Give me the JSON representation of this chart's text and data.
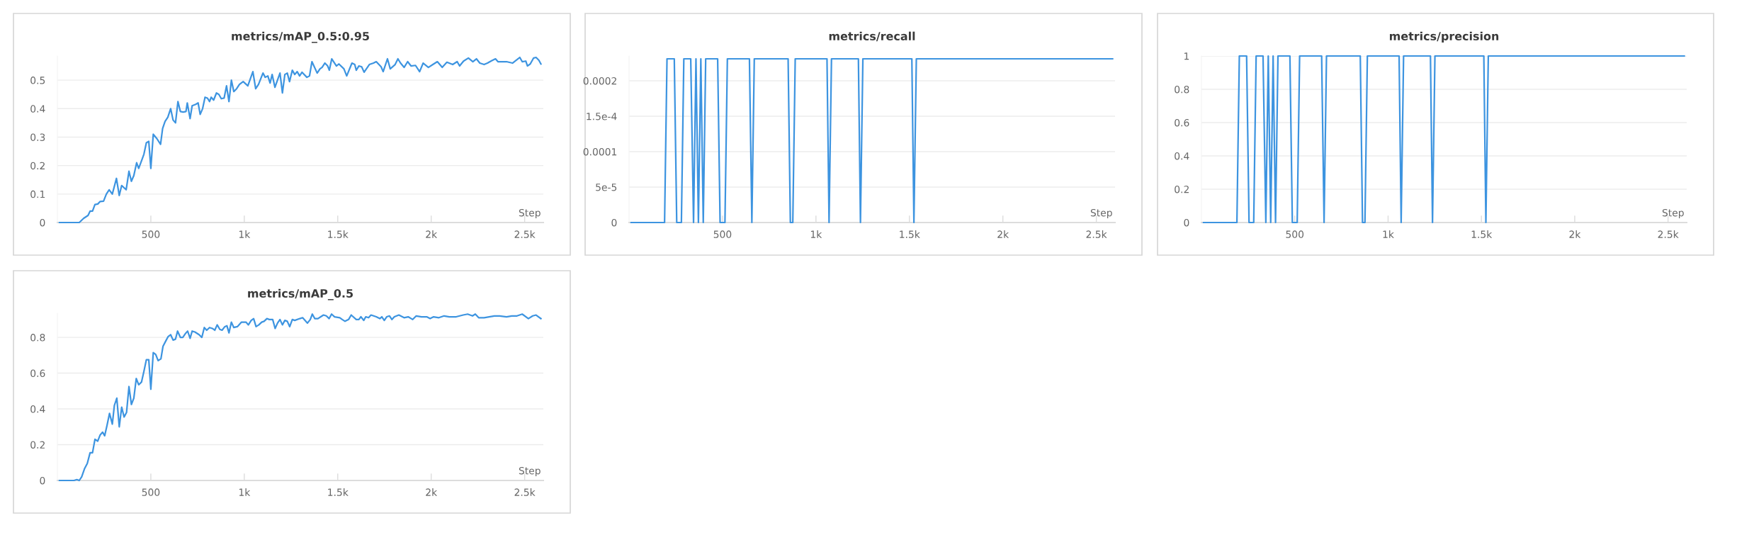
{
  "chart_data": [
    {
      "type": "line",
      "title": "metrics/mAP_0.5:0.95",
      "xlabel": "Step",
      "grid": "y",
      "xlim": [
        0,
        2600
      ],
      "ylim": [
        0,
        0.585
      ],
      "xticks": [
        500,
        {
          "value": 1000,
          "label": "1k"
        },
        {
          "value": 1500,
          "label": "1.5k"
        },
        {
          "value": 2000,
          "label": "2k"
        },
        {
          "value": 2500,
          "label": "2.5k"
        }
      ],
      "yticks": [
        0,
        0.1,
        0.2,
        0.3,
        0.4,
        0.5
      ],
      "series": [
        {
          "color": "#3d94e0",
          "x": [
            11,
            117,
            141,
            164,
            175,
            188,
            201,
            216,
            229,
            247,
            262,
            277,
            294,
            316,
            331,
            344,
            368,
            383,
            396,
            409,
            424,
            435,
            452,
            463,
            476,
            489,
            500,
            513,
            532,
            552,
            563,
            576,
            591,
            606,
            619,
            632,
            645,
            658,
            673,
            688,
            695,
            710,
            721,
            740,
            753,
            764,
            777,
            790,
            803,
            814,
            823,
            836,
            851,
            864,
            877,
            892,
            905,
            918,
            931,
            944,
            959,
            974,
            994,
            1019,
            1046,
            1061,
            1076,
            1100,
            1112,
            1126,
            1138,
            1149,
            1164,
            1191,
            1204,
            1217,
            1230,
            1242,
            1257,
            1270,
            1283,
            1296,
            1309,
            1335,
            1349,
            1362,
            1390,
            1405,
            1416,
            1431,
            1446,
            1455,
            1468,
            1493,
            1506,
            1533,
            1548,
            1576,
            1591,
            1599,
            1613,
            1628,
            1641,
            1669,
            1691,
            1706,
            1732,
            1743,
            1766,
            1781,
            1807,
            1822,
            1836,
            1855,
            1874,
            1892,
            1916,
            1938,
            1957,
            1985,
            2009,
            2033,
            2059,
            2084,
            2115,
            2139,
            2152,
            2173,
            2199,
            2223,
            2242,
            2260,
            2283,
            2301,
            2323,
            2344,
            2357,
            2403,
            2435,
            2459,
            2474,
            2487,
            2506,
            2515,
            2530,
            2548,
            2561,
            2576,
            2587
          ],
          "values": [
            0,
            0,
            0.015,
            0.025,
            0.04,
            0.04,
            0.063,
            0.065,
            0.074,
            0.075,
            0.1,
            0.115,
            0.1,
            0.155,
            0.095,
            0.13,
            0.115,
            0.18,
            0.145,
            0.165,
            0.21,
            0.19,
            0.22,
            0.24,
            0.28,
            0.285,
            0.19,
            0.31,
            0.295,
            0.275,
            0.33,
            0.355,
            0.37,
            0.4,
            0.36,
            0.35,
            0.425,
            0.39,
            0.388,
            0.39,
            0.42,
            0.365,
            0.41,
            0.415,
            0.42,
            0.38,
            0.4,
            0.44,
            0.437,
            0.425,
            0.44,
            0.43,
            0.455,
            0.45,
            0.435,
            0.437,
            0.48,
            0.425,
            0.5,
            0.46,
            0.47,
            0.485,
            0.495,
            0.48,
            0.53,
            0.47,
            0.485,
            0.525,
            0.51,
            0.515,
            0.49,
            0.52,
            0.475,
            0.525,
            0.455,
            0.52,
            0.525,
            0.495,
            0.535,
            0.52,
            0.53,
            0.515,
            0.528,
            0.51,
            0.515,
            0.565,
            0.525,
            0.54,
            0.545,
            0.56,
            0.55,
            0.535,
            0.575,
            0.55,
            0.557,
            0.54,
            0.515,
            0.56,
            0.555,
            0.535,
            0.55,
            0.547,
            0.528,
            0.555,
            0.56,
            0.565,
            0.547,
            0.53,
            0.575,
            0.54,
            0.555,
            0.575,
            0.56,
            0.545,
            0.565,
            0.55,
            0.552,
            0.53,
            0.56,
            0.545,
            0.555,
            0.565,
            0.545,
            0.563,
            0.555,
            0.565,
            0.55,
            0.567,
            0.578,
            0.565,
            0.575,
            0.56,
            0.555,
            0.56,
            0.568,
            0.575,
            0.565,
            0.565,
            0.56,
            0.572,
            0.58,
            0.565,
            0.567,
            0.55,
            0.557,
            0.578,
            0.58,
            0.57,
            0.557
          ]
        }
      ]
    },
    {
      "type": "line",
      "title": "metrics/recall",
      "xlabel": "Step",
      "grid": "y",
      "xlim": [
        0,
        2600
      ],
      "ylim": [
        0,
        0.000235
      ],
      "xticks": [
        500,
        {
          "value": 1000,
          "label": "1k"
        },
        {
          "value": 1500,
          "label": "1.5k"
        },
        {
          "value": 2000,
          "label": "2k"
        },
        {
          "value": 2500,
          "label": "2.5k"
        }
      ],
      "yticks": [
        0,
        {
          "value": 5e-05,
          "label": "5e-5"
        },
        {
          "value": 0.0001,
          "label": "0.0001"
        },
        {
          "value": 0.00015,
          "label": "1.5e-4"
        },
        {
          "value": 0.0002,
          "label": "0.0002"
        }
      ],
      "series": [
        {
          "color": "#3d94e0",
          "x": [
            11,
            190,
            203,
            242,
            255,
            280,
            293,
            330,
            345,
            358,
            371,
            384,
            397,
            410,
            474,
            487,
            513,
            526,
            644,
            657,
            670,
            851,
            863,
            876,
            889,
            1059,
            1070,
            1083,
            1227,
            1238,
            1251,
            1513,
            1524,
            1537,
            2587
          ],
          "values": [
            0,
            0,
            0.000231,
            0.000231,
            0,
            0,
            0.000231,
            0.000231,
            0,
            0.000231,
            0,
            0.000231,
            0,
            0.000231,
            0.000231,
            0,
            0,
            0.000231,
            0.000231,
            0,
            0.000231,
            0.000231,
            0,
            0,
            0.000231,
            0.000231,
            0,
            0.000231,
            0.000231,
            0,
            0.000231,
            0.000231,
            0,
            0.000231,
            0.000231
          ]
        }
      ]
    },
    {
      "type": "line",
      "title": "metrics/precision",
      "xlabel": "Step",
      "grid": "y",
      "xlim": [
        0,
        2600
      ],
      "ylim": [
        0,
        1
      ],
      "xticks": [
        500,
        {
          "value": 1000,
          "label": "1k"
        },
        {
          "value": 1500,
          "label": "1.5k"
        },
        {
          "value": 2000,
          "label": "2k"
        },
        {
          "value": 2500,
          "label": "2.5k"
        }
      ],
      "yticks": [
        0,
        0.2,
        0.4,
        0.6,
        0.8,
        1
      ],
      "series": [
        {
          "color": "#3d94e0",
          "x": [
            11,
            190,
            203,
            242,
            255,
            280,
            293,
            330,
            345,
            358,
            371,
            384,
            397,
            410,
            474,
            487,
            513,
            526,
            644,
            657,
            670,
            851,
            863,
            876,
            889,
            1059,
            1070,
            1083,
            1227,
            1238,
            1251,
            1513,
            1524,
            1537,
            2587
          ],
          "values": [
            0,
            0,
            1,
            1,
            0,
            0,
            1,
            1,
            0,
            1,
            0,
            1,
            0,
            1,
            1,
            0,
            0,
            1,
            1,
            0,
            1,
            1,
            0,
            0,
            1,
            1,
            0,
            1,
            1,
            0,
            1,
            1,
            0,
            1,
            1
          ]
        }
      ]
    },
    {
      "type": "line",
      "title": "metrics/mAP_0.5",
      "xlabel": "Step",
      "grid": "y",
      "xlim": [
        0,
        2600
      ],
      "ylim": [
        0,
        0.935
      ],
      "xticks": [
        500,
        {
          "value": 1000,
          "label": "1k"
        },
        {
          "value": 1500,
          "label": "1.5k"
        },
        {
          "value": 2000,
          "label": "2k"
        },
        {
          "value": 2500,
          "label": "2.5k"
        }
      ],
      "yticks": [
        0,
        0.2,
        0.4,
        0.6,
        0.8
      ],
      "series": [
        {
          "color": "#3d94e0",
          "x": [
            11,
            89,
            104,
            117,
            130,
            145,
            160,
            175,
            188,
            201,
            216,
            229,
            242,
            253,
            266,
            279,
            294,
            305,
            318,
            331,
            344,
            357,
            370,
            383,
            396,
            409,
            422,
            435,
            450,
            463,
            476,
            489,
            500,
            513,
            526,
            539,
            554,
            565,
            580,
            593,
            606,
            619,
            632,
            643,
            658,
            671,
            684,
            697,
            710,
            721,
            736,
            758,
            773,
            786,
            799,
            814,
            829,
            842,
            855,
            869,
            881,
            896,
            907,
            918,
            931,
            944,
            963,
            985,
            1009,
            1022,
            1037,
            1050,
            1063,
            1078,
            1093,
            1106,
            1121,
            1134,
            1152,
            1165,
            1178,
            1191,
            1204,
            1217,
            1230,
            1243,
            1257,
            1270,
            1297,
            1312,
            1338,
            1353,
            1364,
            1377,
            1394,
            1409,
            1424,
            1439,
            1454,
            1467,
            1483,
            1511,
            1524,
            1539,
            1558,
            1572,
            1599,
            1613,
            1624,
            1639,
            1650,
            1665,
            1678,
            1706,
            1725,
            1736,
            1749,
            1762,
            1777,
            1790,
            1803,
            1827,
            1855,
            1877,
            1901,
            1920,
            1948,
            1976,
            1994,
            2013,
            2041,
            2069,
            2097,
            2134,
            2171,
            2195,
            2221,
            2236,
            2254,
            2283,
            2310,
            2338,
            2366,
            2403,
            2431,
            2459,
            2487,
            2520,
            2543,
            2561,
            2587
          ],
          "values": [
            0,
            0,
            0.005,
            0,
            0.02,
            0.065,
            0.095,
            0.155,
            0.155,
            0.23,
            0.22,
            0.255,
            0.27,
            0.25,
            0.31,
            0.375,
            0.315,
            0.42,
            0.46,
            0.3,
            0.41,
            0.355,
            0.38,
            0.525,
            0.425,
            0.46,
            0.57,
            0.535,
            0.55,
            0.61,
            0.675,
            0.675,
            0.51,
            0.715,
            0.705,
            0.67,
            0.68,
            0.75,
            0.78,
            0.805,
            0.815,
            0.785,
            0.79,
            0.835,
            0.8,
            0.8,
            0.82,
            0.835,
            0.795,
            0.835,
            0.83,
            0.815,
            0.8,
            0.855,
            0.84,
            0.855,
            0.85,
            0.84,
            0.87,
            0.845,
            0.84,
            0.86,
            0.865,
            0.825,
            0.885,
            0.855,
            0.86,
            0.885,
            0.885,
            0.87,
            0.895,
            0.905,
            0.86,
            0.87,
            0.885,
            0.89,
            0.905,
            0.9,
            0.9,
            0.85,
            0.88,
            0.9,
            0.87,
            0.895,
            0.89,
            0.86,
            0.9,
            0.895,
            0.905,
            0.91,
            0.88,
            0.9,
            0.93,
            0.905,
            0.905,
            0.915,
            0.925,
            0.92,
            0.905,
            0.93,
            0.915,
            0.91,
            0.9,
            0.89,
            0.9,
            0.925,
            0.9,
            0.9,
            0.915,
            0.895,
            0.915,
            0.91,
            0.925,
            0.915,
            0.905,
            0.915,
            0.895,
            0.915,
            0.92,
            0.9,
            0.915,
            0.925,
            0.91,
            0.915,
            0.9,
            0.92,
            0.915,
            0.915,
            0.905,
            0.915,
            0.91,
            0.92,
            0.915,
            0.915,
            0.925,
            0.93,
            0.92,
            0.93,
            0.91,
            0.91,
            0.915,
            0.92,
            0.92,
            0.915,
            0.92,
            0.92,
            0.93,
            0.905,
            0.92,
            0.925,
            0.905
          ]
        }
      ]
    }
  ]
}
